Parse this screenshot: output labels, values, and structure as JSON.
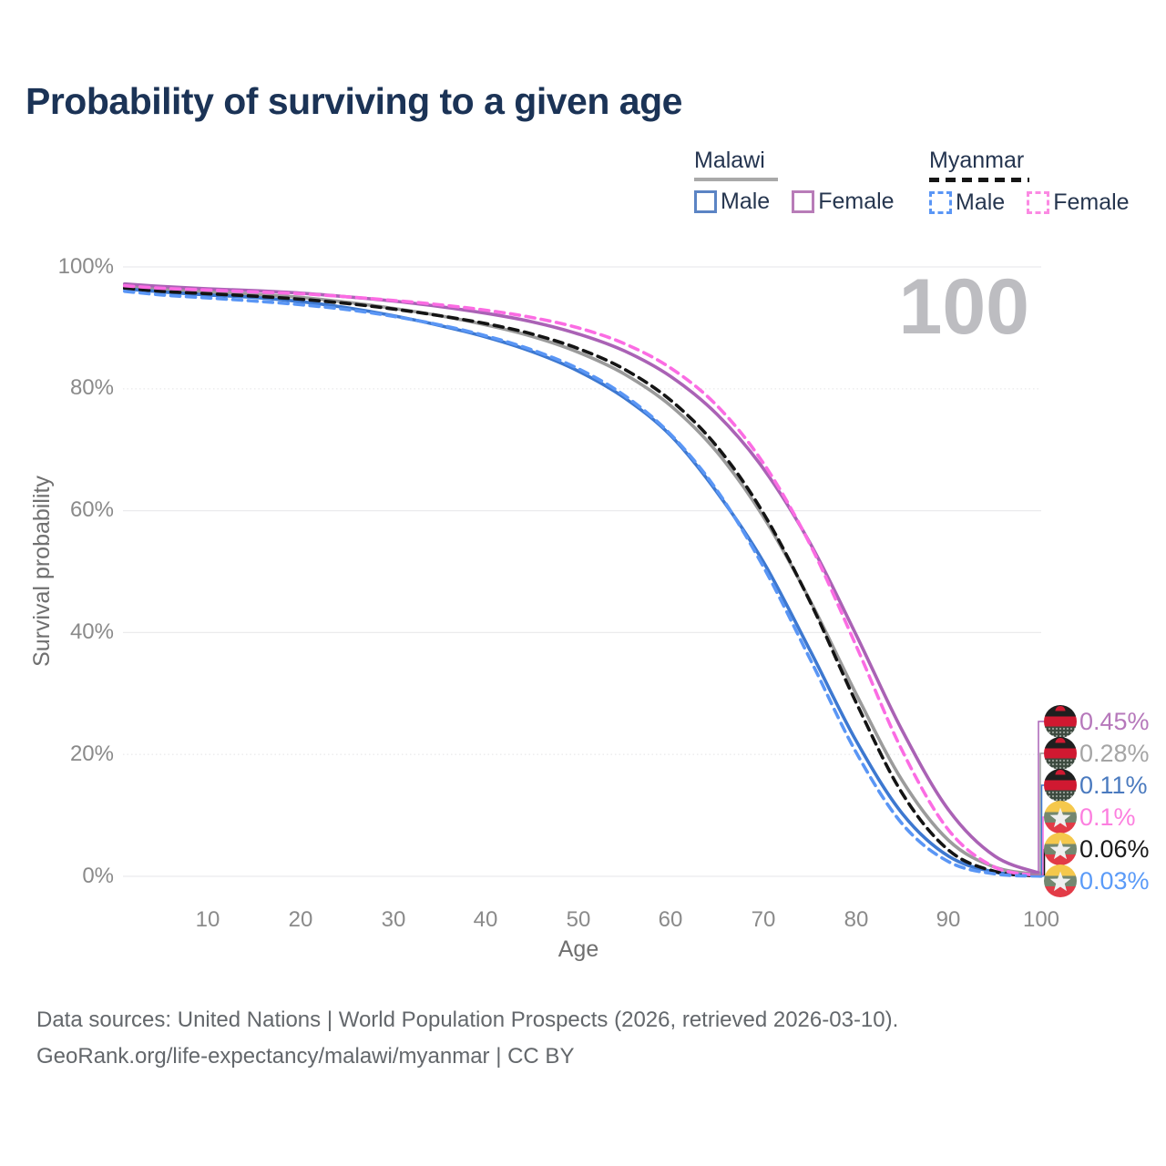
{
  "header": {
    "title": "Probability of surviving to a given age"
  },
  "legend": {
    "groups": [
      {
        "label": "Malawi",
        "line_style": "solid",
        "line_color": "#a9a9a9",
        "items": [
          {
            "label": "Male",
            "box_color": "#5b84c4",
            "box_style": "solid"
          },
          {
            "label": "Female",
            "box_color": "#b87cb8",
            "box_style": "solid"
          }
        ]
      },
      {
        "label": "Myanmar",
        "line_style": "dashed",
        "line_color": "#161616",
        "items": [
          {
            "label": "Male",
            "box_color": "#5a96f5",
            "box_style": "dashed"
          },
          {
            "label": "Female",
            "box_color": "#fb8ae3",
            "box_style": "dashed"
          }
        ]
      }
    ]
  },
  "watermark": "100",
  "chart_data": {
    "type": "line",
    "title": "Probability of surviving to a given age",
    "xlabel": "Age",
    "ylabel": "Survival probability",
    "xlim": [
      0,
      100
    ],
    "ylim": [
      0,
      100
    ],
    "grid": "horizontal",
    "legend_position": "top-right",
    "x_tick_labels": [
      "10",
      "20",
      "30",
      "40",
      "50",
      "60",
      "70",
      "80",
      "90",
      "100"
    ],
    "x_tick_values": [
      10,
      20,
      30,
      40,
      50,
      60,
      70,
      80,
      90,
      100
    ],
    "y_tick_labels": [
      "100%",
      "80%",
      "60%",
      "40%",
      "20%",
      "0%"
    ],
    "y_tick_values": [
      100,
      80,
      60,
      40,
      20,
      0
    ],
    "ages": [
      1,
      5,
      10,
      15,
      20,
      25,
      30,
      35,
      40,
      45,
      50,
      55,
      60,
      65,
      70,
      75,
      80,
      85,
      90,
      95,
      100
    ],
    "series": [
      {
        "name": "Malawi Female",
        "country": "Malawi",
        "sex": "Female",
        "style": "solid",
        "color": "#aa62b5",
        "label_color": "#b678bb",
        "end_label": "0.45%",
        "flag": "malawi",
        "values": [
          97.2,
          96.8,
          96.4,
          96.1,
          95.7,
          95.1,
          94.4,
          93.5,
          92.4,
          91.0,
          89.0,
          86.2,
          82.0,
          75.8,
          66.9,
          54.8,
          39.7,
          23.9,
          10.9,
          3.3,
          0.45
        ]
      },
      {
        "name": "Malawi Both sexes",
        "country": "Malawi",
        "sex": "Both",
        "style": "solid",
        "color": "#9b9b9b",
        "label_color": "#a5a5a5",
        "end_label": "0.28%",
        "flag": "malawi",
        "values": [
          96.8,
          96.3,
          95.9,
          95.5,
          95.0,
          94.2,
          93.2,
          92.0,
          90.5,
          88.6,
          86.0,
          82.4,
          77.2,
          69.6,
          59.0,
          45.4,
          30.0,
          15.7,
          5.9,
          1.5,
          0.28
        ]
      },
      {
        "name": "Malawi Male",
        "country": "Malawi",
        "sex": "Male",
        "style": "solid",
        "color": "#3d78d0",
        "label_color": "#4a7abf",
        "end_label": "0.11%",
        "flag": "malawi",
        "values": [
          96.4,
          95.9,
          95.4,
          95.0,
          94.3,
          93.3,
          92.0,
          90.4,
          88.5,
          86.1,
          82.9,
          78.5,
          72.3,
          63.0,
          51.6,
          37.2,
          22.3,
          10.3,
          3.3,
          0.7,
          0.11
        ]
      },
      {
        "name": "Myanmar Female",
        "country": "Myanmar",
        "sex": "Female",
        "style": "dashed",
        "color": "#fb6ce3",
        "label_color": "#fc7fdf",
        "end_label": "0.1%",
        "flag": "myanmar",
        "values": [
          96.9,
          96.5,
          96.2,
          95.9,
          95.6,
          95.1,
          94.5,
          93.8,
          92.9,
          91.7,
          90.0,
          87.4,
          83.4,
          77.2,
          67.8,
          54.6,
          37.9,
          20.6,
          7.6,
          1.5,
          0.1
        ]
      },
      {
        "name": "Myanmar Both sexes",
        "country": "Myanmar",
        "sex": "Both",
        "style": "dashed",
        "color": "#141414",
        "label_color": "#1a1a1a",
        "end_label": "0.06%",
        "flag": "myanmar",
        "values": [
          96.5,
          96.0,
          95.6,
          95.2,
          94.7,
          94.0,
          93.1,
          92.0,
          90.7,
          89.0,
          86.6,
          83.2,
          78.1,
          70.5,
          59.6,
          45.2,
          28.6,
          13.6,
          4.3,
          0.8,
          0.06
        ]
      },
      {
        "name": "Myanmar Male",
        "country": "Myanmar",
        "sex": "Male",
        "style": "dashed",
        "color": "#5a96f5",
        "label_color": "#5b9bf8",
        "end_label": "0.03%",
        "flag": "myanmar",
        "values": [
          96.0,
          95.4,
          94.9,
          94.4,
          93.8,
          93.0,
          91.9,
          90.5,
          88.7,
          86.4,
          83.3,
          78.9,
          72.5,
          63.3,
          50.8,
          35.8,
          20.4,
          8.6,
          2.4,
          0.4,
          0.03
        ]
      }
    ]
  },
  "footer": {
    "line1": "Data sources: United Nations | World Population Prospects (2026, retrieved 2026-03-10).",
    "line2": "GeoRank.org/life-expectancy/malawi/myanmar | CC BY"
  }
}
